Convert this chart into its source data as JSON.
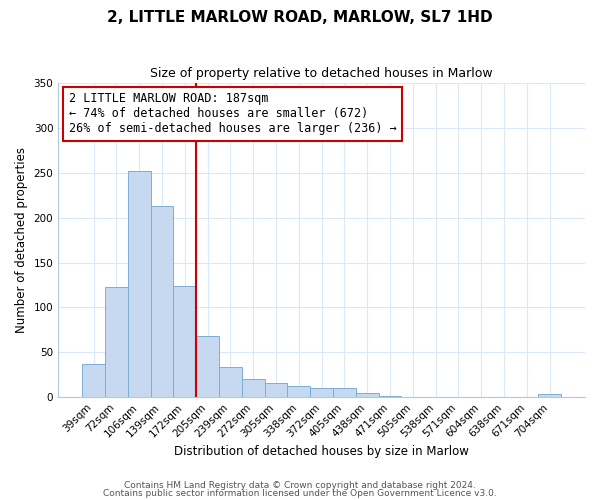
{
  "title": "2, LITTLE MARLOW ROAD, MARLOW, SL7 1HD",
  "subtitle": "Size of property relative to detached houses in Marlow",
  "xlabel": "Distribution of detached houses by size in Marlow",
  "ylabel": "Number of detached properties",
  "bar_labels": [
    "39sqm",
    "72sqm",
    "106sqm",
    "139sqm",
    "172sqm",
    "205sqm",
    "239sqm",
    "272sqm",
    "305sqm",
    "338sqm",
    "372sqm",
    "405sqm",
    "438sqm",
    "471sqm",
    "505sqm",
    "538sqm",
    "571sqm",
    "604sqm",
    "638sqm",
    "671sqm",
    "704sqm"
  ],
  "bar_heights": [
    37,
    123,
    252,
    213,
    124,
    68,
    34,
    20,
    16,
    12,
    10,
    10,
    5,
    1,
    0,
    0,
    0,
    0,
    0,
    0,
    4
  ],
  "bar_color": "#c6d9f0",
  "bar_edge_color": "#7bafd4",
  "vline_x": 4.5,
  "vline_color": "#cc0000",
  "annotation_line1": "2 LITTLE MARLOW ROAD: 187sqm",
  "annotation_line2": "← 74% of detached houses are smaller (672)",
  "annotation_line3": "26% of semi-detached houses are larger (236) →",
  "annotation_box_color": "#ffffff",
  "annotation_box_edge": "#cc0000",
  "ylim": [
    0,
    350
  ],
  "yticks": [
    0,
    50,
    100,
    150,
    200,
    250,
    300,
    350
  ],
  "footnote1": "Contains HM Land Registry data © Crown copyright and database right 2024.",
  "footnote2": "Contains public sector information licensed under the Open Government Licence v3.0.",
  "bg_color": "#ffffff",
  "grid_color": "#dce8f5",
  "title_fontsize": 11,
  "subtitle_fontsize": 9,
  "axis_label_fontsize": 8.5,
  "tick_fontsize": 7.5,
  "annotation_fontsize": 8.5,
  "footnote_fontsize": 6.5
}
